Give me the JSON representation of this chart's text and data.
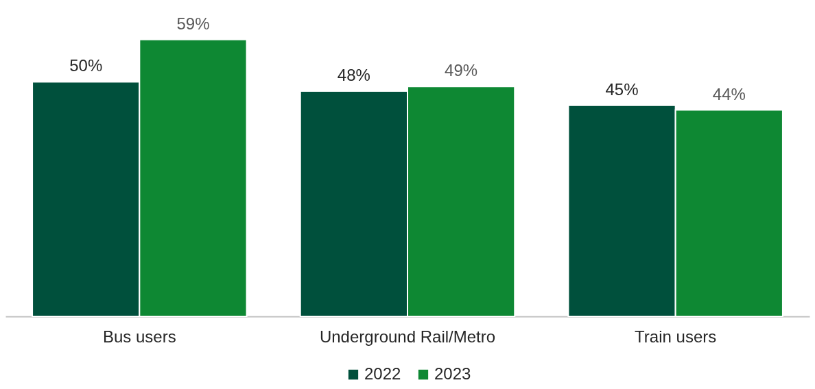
{
  "chart_data": {
    "type": "bar",
    "categories": [
      "Bus users",
      "Underground Rail/Metro",
      "Train users"
    ],
    "series": [
      {
        "name": "2022",
        "color": "#00503c",
        "values": [
          50,
          48,
          45
        ],
        "value_labels": [
          "50%",
          "48%",
          "45%"
        ]
      },
      {
        "name": "2023",
        "color": "#0e8833",
        "values": [
          59,
          49,
          44
        ],
        "value_labels": [
          "59%",
          "49%",
          "44%"
        ]
      }
    ],
    "legend": "bottom",
    "grid": false
  }
}
